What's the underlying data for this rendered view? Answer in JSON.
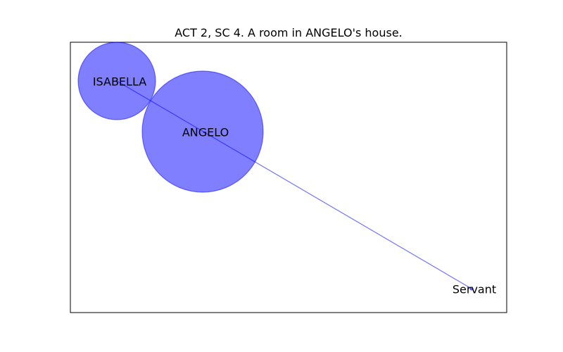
{
  "title": "ACT 2, SC 4. A room in ANGELO's house.",
  "colors": {
    "node_fill": "#0000ff",
    "edge": "#0000ff",
    "frame": "#000000",
    "background": "#ffffff"
  },
  "nodes": [
    {
      "id": "isabella",
      "label": "ISABELLA"
    },
    {
      "id": "angelo",
      "label": "ANGELO"
    },
    {
      "id": "servant",
      "label": "Servant"
    }
  ],
  "edges": [
    {
      "from": "isabella",
      "to": "servant"
    }
  ]
}
